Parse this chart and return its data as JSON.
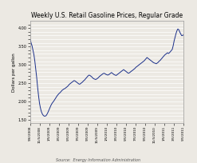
{
  "title": "Weekly U.S. Retail Gasoline Prices, Regular Grade",
  "ylabel": "Dollars per gallon",
  "source_text": "Source:  Energy Information Administration",
  "background_color": "#ece9e3",
  "plot_bg_color": "#ece9e3",
  "line_color": "#1a2f8a",
  "ylim": [
    1.4,
    4.2
  ],
  "ytick_min": 1.5,
  "ytick_max": 4.1,
  "ytick_step": 0.1,
  "x_labels": [
    "9/6/2008",
    "11/5/2008",
    "1/5/2009",
    "3/5/2009",
    "5/5/2009",
    "7/5/2009",
    "9/5/2009",
    "11/5/2009",
    "1/5/2010",
    "3/5/2010",
    "5/5/2010",
    "7/5/2010",
    "9/5/2010",
    "11/5/2010",
    "1/5/2011",
    "3/5/2011",
    "5/5/2011"
  ],
  "data_y": [
    3.69,
    3.6,
    3.52,
    3.4,
    3.28,
    3.1,
    2.88,
    2.65,
    2.38,
    2.15,
    1.95,
    1.82,
    1.72,
    1.66,
    1.62,
    1.6,
    1.6,
    1.61,
    1.65,
    1.7,
    1.76,
    1.82,
    1.88,
    1.93,
    1.97,
    2.0,
    2.04,
    2.08,
    2.12,
    2.16,
    2.19,
    2.22,
    2.24,
    2.27,
    2.3,
    2.32,
    2.34,
    2.35,
    2.37,
    2.39,
    2.41,
    2.44,
    2.47,
    2.49,
    2.51,
    2.53,
    2.55,
    2.57,
    2.56,
    2.54,
    2.52,
    2.5,
    2.48,
    2.47,
    2.49,
    2.51,
    2.53,
    2.56,
    2.58,
    2.61,
    2.64,
    2.67,
    2.7,
    2.72,
    2.71,
    2.69,
    2.67,
    2.64,
    2.62,
    2.61,
    2.6,
    2.61,
    2.63,
    2.65,
    2.68,
    2.7,
    2.72,
    2.74,
    2.76,
    2.77,
    2.76,
    2.74,
    2.73,
    2.72,
    2.73,
    2.75,
    2.77,
    2.79,
    2.77,
    2.75,
    2.73,
    2.72,
    2.71,
    2.73,
    2.75,
    2.77,
    2.79,
    2.81,
    2.83,
    2.85,
    2.87,
    2.85,
    2.83,
    2.81,
    2.79,
    2.77,
    2.78,
    2.8,
    2.82,
    2.84,
    2.86,
    2.88,
    2.9,
    2.93,
    2.95,
    2.97,
    2.99,
    3.01,
    3.03,
    3.05,
    3.07,
    3.09,
    3.11,
    3.14,
    3.17,
    3.2,
    3.18,
    3.16,
    3.14,
    3.12,
    3.1,
    3.08,
    3.06,
    3.05,
    3.04,
    3.03,
    3.05,
    3.07,
    3.1,
    3.12,
    3.15,
    3.18,
    3.21,
    3.24,
    3.27,
    3.29,
    3.31,
    3.33,
    3.31,
    3.33,
    3.36,
    3.39,
    3.42,
    3.52,
    3.65,
    3.75,
    3.85,
    3.93,
    3.98,
    3.96,
    3.9,
    3.85,
    3.8,
    3.8,
    3.82
  ]
}
